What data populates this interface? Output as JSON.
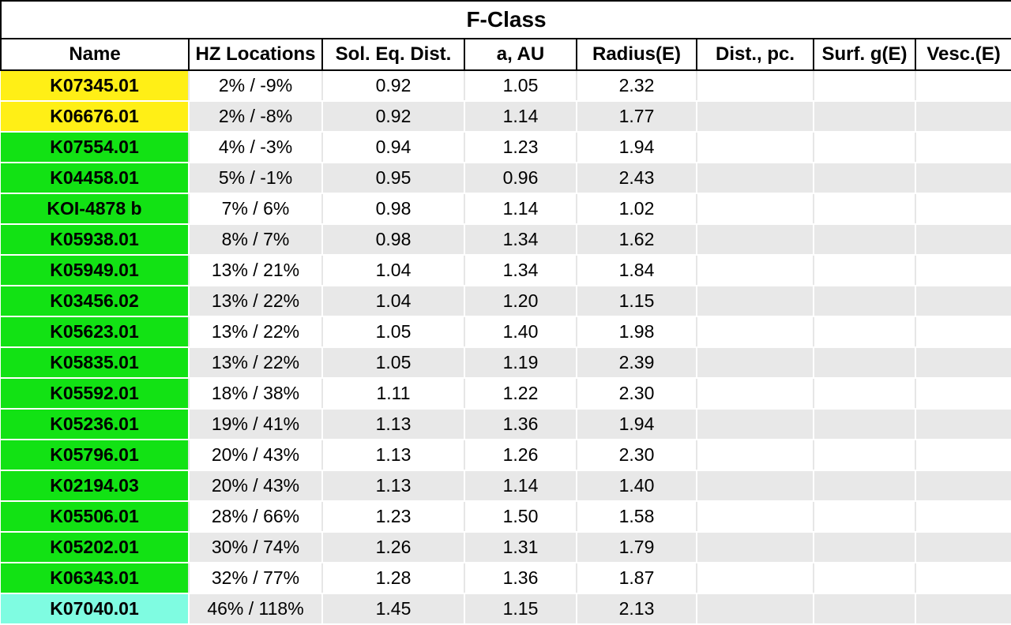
{
  "table": {
    "title": "F-Class",
    "headers": [
      "Name",
      "HZ Locations",
      "Sol. Eq. Dist.",
      "a, AU",
      "Radius(E)",
      "Dist., pc.",
      "Surf. g(E)",
      "Vesc.(E)"
    ],
    "colors": {
      "yellow": "#ffef16",
      "green": "#12e214",
      "cyan": "#7ffce1",
      "stripe": "#e8e8e8"
    },
    "rows": [
      {
        "name": "K07345.01",
        "hz": "2% / -9%",
        "sol": "0.92",
        "a": "1.05",
        "radius": "2.32",
        "dist": "",
        "surf": "",
        "vesc": "",
        "color": "yellow"
      },
      {
        "name": "K06676.01",
        "hz": "2% / -8%",
        "sol": "0.92",
        "a": "1.14",
        "radius": "1.77",
        "dist": "",
        "surf": "",
        "vesc": "",
        "color": "yellow"
      },
      {
        "name": "K07554.01",
        "hz": "4% / -3%",
        "sol": "0.94",
        "a": "1.23",
        "radius": "1.94",
        "dist": "",
        "surf": "",
        "vesc": "",
        "color": "green"
      },
      {
        "name": "K04458.01",
        "hz": "5% / -1%",
        "sol": "0.95",
        "a": "0.96",
        "radius": "2.43",
        "dist": "",
        "surf": "",
        "vesc": "",
        "color": "green"
      },
      {
        "name": "KOI-4878 b",
        "hz": "7% / 6%",
        "sol": "0.98",
        "a": "1.14",
        "radius": "1.02",
        "dist": "",
        "surf": "",
        "vesc": "",
        "color": "green"
      },
      {
        "name": "K05938.01",
        "hz": "8% / 7%",
        "sol": "0.98",
        "a": "1.34",
        "radius": "1.62",
        "dist": "",
        "surf": "",
        "vesc": "",
        "color": "green"
      },
      {
        "name": "K05949.01",
        "hz": "13% / 21%",
        "sol": "1.04",
        "a": "1.34",
        "radius": "1.84",
        "dist": "",
        "surf": "",
        "vesc": "",
        "color": "green"
      },
      {
        "name": "K03456.02",
        "hz": "13% / 22%",
        "sol": "1.04",
        "a": "1.20",
        "radius": "1.15",
        "dist": "",
        "surf": "",
        "vesc": "",
        "color": "green"
      },
      {
        "name": "K05623.01",
        "hz": "13% / 22%",
        "sol": "1.05",
        "a": "1.40",
        "radius": "1.98",
        "dist": "",
        "surf": "",
        "vesc": "",
        "color": "green"
      },
      {
        "name": "K05835.01",
        "hz": "13% / 22%",
        "sol": "1.05",
        "a": "1.19",
        "radius": "2.39",
        "dist": "",
        "surf": "",
        "vesc": "",
        "color": "green"
      },
      {
        "name": "K05592.01",
        "hz": "18% / 38%",
        "sol": "1.11",
        "a": "1.22",
        "radius": "2.30",
        "dist": "",
        "surf": "",
        "vesc": "",
        "color": "green"
      },
      {
        "name": "K05236.01",
        "hz": "19% / 41%",
        "sol": "1.13",
        "a": "1.36",
        "radius": "1.94",
        "dist": "",
        "surf": "",
        "vesc": "",
        "color": "green"
      },
      {
        "name": "K05796.01",
        "hz": "20% / 43%",
        "sol": "1.13",
        "a": "1.26",
        "radius": "2.30",
        "dist": "",
        "surf": "",
        "vesc": "",
        "color": "green"
      },
      {
        "name": "K02194.03",
        "hz": "20% / 43%",
        "sol": "1.13",
        "a": "1.14",
        "radius": "1.40",
        "dist": "",
        "surf": "",
        "vesc": "",
        "color": "green"
      },
      {
        "name": "K05506.01",
        "hz": "28% / 66%",
        "sol": "1.23",
        "a": "1.50",
        "radius": "1.58",
        "dist": "",
        "surf": "",
        "vesc": "",
        "color": "green"
      },
      {
        "name": "K05202.01",
        "hz": "30% / 74%",
        "sol": "1.26",
        "a": "1.31",
        "radius": "1.79",
        "dist": "",
        "surf": "",
        "vesc": "",
        "color": "green"
      },
      {
        "name": "K06343.01",
        "hz": "32% / 77%",
        "sol": "1.28",
        "a": "1.36",
        "radius": "1.87",
        "dist": "",
        "surf": "",
        "vesc": "",
        "color": "green"
      },
      {
        "name": "K07040.01",
        "hz": "46% / 118%",
        "sol": "1.45",
        "a": "1.15",
        "radius": "2.13",
        "dist": "",
        "surf": "",
        "vesc": "",
        "color": "cyan"
      }
    ]
  }
}
